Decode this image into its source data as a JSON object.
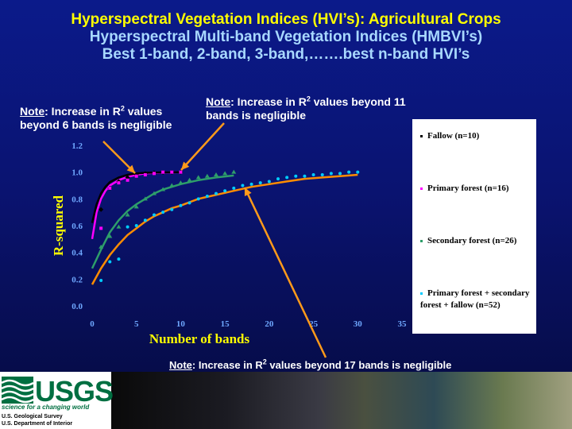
{
  "titles": {
    "line1": "Hyperspectral Vegetation Indices (HVI’s): Agricultural Crops",
    "line2": "Hyperspectral Multi-band Vegetation Indices (HMBVI’s)",
    "line3": "Best 1-band, 2-band, 3-band,…….best n-band HVI’s"
  },
  "notes": {
    "note1": {
      "label": "Note",
      "pre": ": Increase in R",
      "sup": "2",
      "post": " values",
      "line2": "beyond 6 bands is negligible"
    },
    "note2": {
      "label": "Note",
      "pre": ": Increase in R",
      "sup": "2",
      "post": " values beyond 11",
      "line2": "bands is negligible"
    },
    "note3": {
      "label": "Note",
      "pre": ": Increase in R",
      "sup": "2",
      "post": " values beyond 17 bands is negligible"
    }
  },
  "colors": {
    "fallow": "#000000",
    "primary": "#ff00ff",
    "secondary": "#2e9e6a",
    "combined": "#00ccff",
    "combined_curve": "#ff8c00",
    "arrow": "#ff9a1a",
    "axis_text": "#ffff00",
    "tick_text": "#6fa8ff"
  },
  "legend": {
    "items": [
      {
        "label": "Fallow (n=10)",
        "color": "#000000"
      },
      {
        "label": "Primary forest (n=16)",
        "color": "#ff00ff"
      },
      {
        "label": "Secondary forest (n=26)",
        "color": "#2e9e6a"
      },
      {
        "label": "Primary forest + secondary forest + fallow (n=52)",
        "color": "#00ccff"
      }
    ]
  },
  "footer": {
    "logo": "USGS",
    "tagline": "science for a changing world",
    "org1": "U.S. Geological Survey",
    "org2": "U.S. Department of Interior"
  },
  "chart_data": {
    "type": "scatter",
    "xlabel": "Number of bands",
    "ylabel": "R-squared",
    "xlim": [
      0,
      35
    ],
    "ylim": [
      0,
      1.2
    ],
    "xticks": [
      0,
      5,
      10,
      15,
      20,
      25,
      30,
      35
    ],
    "yticks": [
      "0.0",
      "0.2",
      "0.4",
      "0.6",
      "0.8",
      "1.0",
      "1.2"
    ],
    "grid": false,
    "legend_position": "right",
    "series": [
      {
        "name": "Fallow (n=10)",
        "marker": "diamond",
        "points": [
          [
            1,
            0.72
          ],
          [
            2,
            0.88
          ],
          [
            3,
            0.93
          ],
          [
            4,
            0.96
          ],
          [
            5,
            0.98
          ],
          [
            6,
            0.99
          ],
          [
            7,
            0.995
          ],
          [
            8,
            0.998
          ],
          [
            9,
            0.999
          ],
          [
            10,
            1.0
          ]
        ],
        "curve": [
          [
            0,
            0.62
          ],
          [
            0.5,
            0.76
          ],
          [
            1,
            0.84
          ],
          [
            1.5,
            0.89
          ],
          [
            2,
            0.925
          ],
          [
            3,
            0.96
          ],
          [
            4,
            0.98
          ],
          [
            5,
            0.99
          ],
          [
            6,
            0.995
          ],
          [
            8,
            0.998
          ],
          [
            10,
            1.0
          ]
        ]
      },
      {
        "name": "Primary forest (n=16)",
        "marker": "square",
        "points": [
          [
            1,
            0.58
          ],
          [
            2,
            0.88
          ],
          [
            3,
            0.92
          ],
          [
            4,
            0.94
          ],
          [
            5,
            0.97
          ],
          [
            6,
            0.98
          ],
          [
            7,
            0.99
          ],
          [
            8,
            1.0
          ],
          [
            9,
            1.0
          ],
          [
            10,
            1.0
          ]
        ],
        "curve": [
          [
            0,
            0.5
          ],
          [
            0.5,
            0.7
          ],
          [
            1,
            0.8
          ],
          [
            1.5,
            0.86
          ],
          [
            2,
            0.9
          ],
          [
            3,
            0.94
          ],
          [
            4,
            0.965
          ],
          [
            5,
            0.98
          ],
          [
            6,
            0.99
          ],
          [
            8,
            0.997
          ],
          [
            10,
            1.0
          ]
        ]
      },
      {
        "name": "Secondary forest (n=26)",
        "marker": "triangle",
        "points": [
          [
            1,
            0.44
          ],
          [
            2,
            0.52
          ],
          [
            3,
            0.59
          ],
          [
            4,
            0.68
          ],
          [
            5,
            0.74
          ],
          [
            6,
            0.8
          ],
          [
            7,
            0.84
          ],
          [
            8,
            0.87
          ],
          [
            9,
            0.9
          ],
          [
            10,
            0.92
          ],
          [
            11,
            0.94
          ],
          [
            12,
            0.96
          ],
          [
            13,
            0.97
          ],
          [
            14,
            0.98
          ],
          [
            15,
            0.99
          ],
          [
            16,
            1.0
          ]
        ],
        "curve": [
          [
            0,
            0.28
          ],
          [
            1,
            0.42
          ],
          [
            2,
            0.55
          ],
          [
            3,
            0.64
          ],
          [
            4,
            0.71
          ],
          [
            5,
            0.76
          ],
          [
            6,
            0.8
          ],
          [
            7,
            0.84
          ],
          [
            8,
            0.87
          ],
          [
            9,
            0.89
          ],
          [
            10,
            0.91
          ],
          [
            12,
            0.94
          ],
          [
            14,
            0.96
          ],
          [
            16,
            0.975
          ]
        ]
      },
      {
        "name": "Primary forest + secondary forest + fallow (n=52)",
        "marker": "circle",
        "points": [
          [
            1,
            0.19
          ],
          [
            2,
            0.33
          ],
          [
            3,
            0.35
          ],
          [
            4,
            0.59
          ],
          [
            5,
            0.6
          ],
          [
            6,
            0.64
          ],
          [
            7,
            0.68
          ],
          [
            8,
            0.7
          ],
          [
            9,
            0.72
          ],
          [
            10,
            0.75
          ],
          [
            11,
            0.77
          ],
          [
            12,
            0.8
          ],
          [
            13,
            0.82
          ],
          [
            14,
            0.84
          ],
          [
            15,
            0.86
          ],
          [
            16,
            0.88
          ],
          [
            17,
            0.9
          ],
          [
            18,
            0.91
          ],
          [
            19,
            0.92
          ],
          [
            20,
            0.93
          ],
          [
            21,
            0.95
          ],
          [
            22,
            0.96
          ],
          [
            23,
            0.97
          ],
          [
            24,
            0.97
          ],
          [
            25,
            0.98
          ],
          [
            26,
            0.98
          ],
          [
            27,
            0.99
          ],
          [
            28,
            0.99
          ],
          [
            29,
            1.0
          ],
          [
            30,
            1.0
          ]
        ],
        "curve": [
          [
            0,
            0.16
          ],
          [
            1,
            0.28
          ],
          [
            2,
            0.38
          ],
          [
            3,
            0.46
          ],
          [
            4,
            0.53
          ],
          [
            5,
            0.58
          ],
          [
            6,
            0.63
          ],
          [
            7,
            0.67
          ],
          [
            8,
            0.7
          ],
          [
            9,
            0.73
          ],
          [
            10,
            0.75
          ],
          [
            12,
            0.8
          ],
          [
            14,
            0.83
          ],
          [
            16,
            0.86
          ],
          [
            18,
            0.89
          ],
          [
            20,
            0.91
          ],
          [
            22,
            0.93
          ],
          [
            24,
            0.95
          ],
          [
            26,
            0.96
          ],
          [
            28,
            0.97
          ],
          [
            30,
            0.98
          ]
        ]
      }
    ]
  }
}
